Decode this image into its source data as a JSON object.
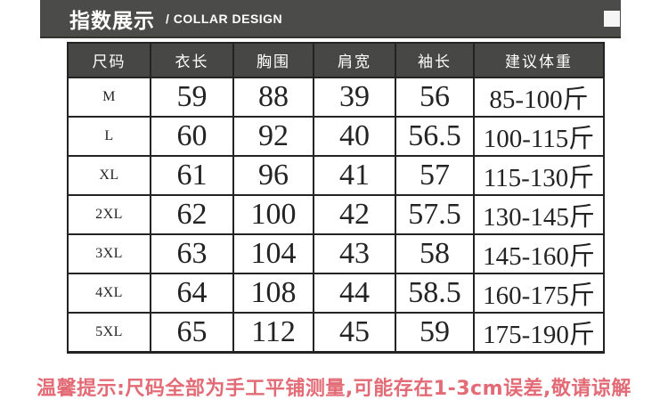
{
  "header": {
    "title_cn": "指数展示",
    "title_en": "/ COLLAR DESIGN"
  },
  "table": {
    "columns": [
      "尺码",
      "衣长",
      "胸围",
      "肩宽",
      "袖长",
      "建议体重"
    ],
    "rows": [
      [
        "M",
        "59",
        "88",
        "39",
        "56",
        "85-100斤"
      ],
      [
        "L",
        "60",
        "92",
        "40",
        "56.5",
        "100-115斤"
      ],
      [
        "XL",
        "61",
        "96",
        "41",
        "57",
        "115-130斤"
      ],
      [
        "2XL",
        "62",
        "100",
        "42",
        "57.5",
        "130-145斤"
      ],
      [
        "3XL",
        "63",
        "104",
        "43",
        "58",
        "145-160斤"
      ],
      [
        "4XL",
        "64",
        "108",
        "44",
        "58.5",
        "160-175斤"
      ],
      [
        "5XL",
        "65",
        "112",
        "45",
        "59",
        "175-190斤"
      ]
    ]
  },
  "footer": {
    "notice": "温馨提示:尺码全部为手工平铺测量,可能存在1-3cm误差,敬请谅解"
  },
  "colors": {
    "title_bar_bg": "#4b4b49",
    "table_header_bg": "#474745",
    "table_border": "#232323",
    "notice_text": "#e26b76"
  }
}
